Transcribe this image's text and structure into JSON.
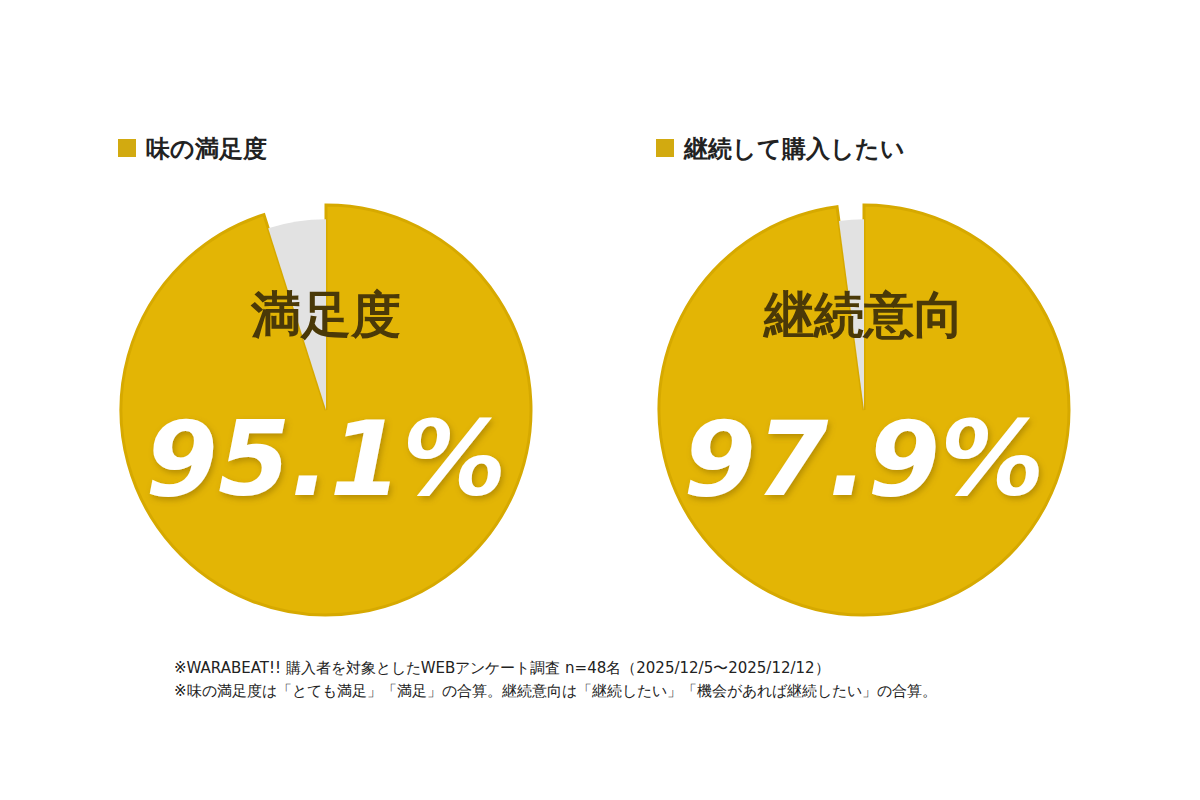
{
  "chart_data": [
    {
      "type": "pie",
      "title": "味の満足度",
      "annotations": [
        "満足度"
      ],
      "values": [
        95.1,
        4.9
      ],
      "value_labels": [
        "95.1%",
        null
      ],
      "colors": [
        "#e3b505",
        "#e2e2e2"
      ],
      "data_labels": true
    },
    {
      "type": "pie",
      "title": "継続して購入したい",
      "annotations": [
        "継続意向"
      ],
      "values": [
        97.9,
        2.1
      ],
      "value_labels": [
        "97.9%",
        null
      ],
      "colors": [
        "#e3b505",
        "#e2e2e2"
      ],
      "data_labels": true
    }
  ],
  "footnotes": [
    "※WARABEAT!! 購入者を対象としたWEBアンケート調査  n=48名（2025/12/5〜2025/12/12）",
    "※味の満足度は「とても満足」「満足」の合算。継続意向は「継続したい」「機会があれば継続したい」の合算。"
  ]
}
